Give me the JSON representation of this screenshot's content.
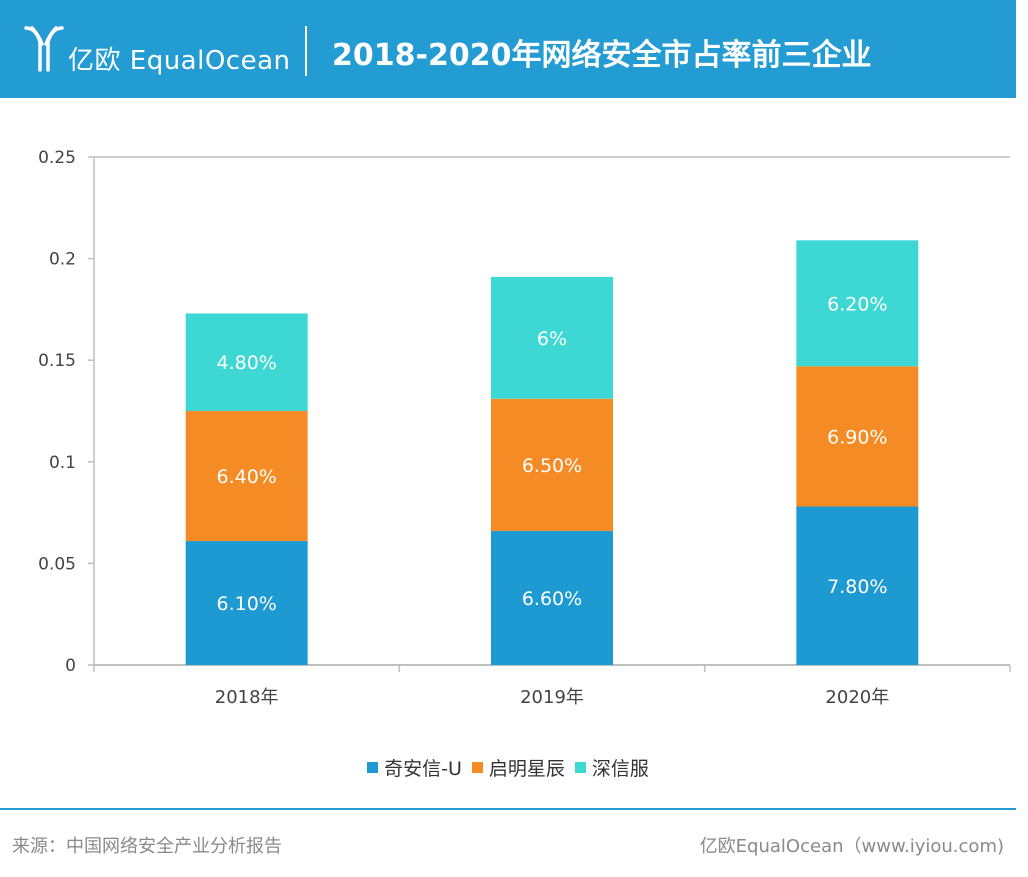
{
  "header": {
    "logo_text": "亿欧 EqualOcean",
    "title": "2018-2020年网络安全市占率前三企业",
    "background": "#239bd3"
  },
  "chart_data": {
    "type": "bar",
    "stacked": true,
    "categories": [
      "2018年",
      "2019年",
      "2020年"
    ],
    "series": [
      {
        "name": "奇安信-U",
        "color": "#1e9ad3",
        "values": [
          0.061,
          0.066,
          0.078
        ],
        "labels": [
          "6.10%",
          "6.60%",
          "7.80%"
        ]
      },
      {
        "name": "启明星辰",
        "color": "#f58b24",
        "values": [
          0.064,
          0.065,
          0.069
        ],
        "labels": [
          "6.40%",
          "6.50%",
          "6.90%"
        ]
      },
      {
        "name": "深信服",
        "color": "#3ed8d4",
        "values": [
          0.048,
          0.06,
          0.062
        ],
        "labels": [
          "4.80%",
          "6%",
          "6.20%"
        ]
      }
    ],
    "ylim": [
      0,
      0.25
    ],
    "yticks": [
      "0",
      "0.05",
      "0.1",
      "0.15",
      "0.2",
      "0.25"
    ],
    "grid": false,
    "legend_position": "bottom"
  },
  "footer": {
    "source": "来源：中国网络安全产业分析报告",
    "brand": "亿欧EqualOcean（www.iyiou.com)"
  }
}
